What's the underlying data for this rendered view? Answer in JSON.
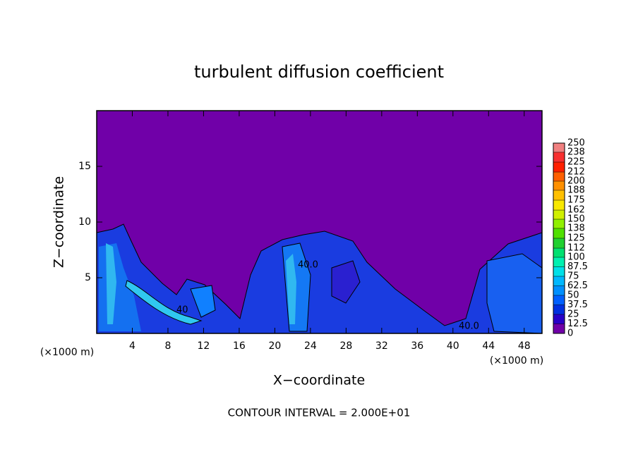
{
  "chart_data": {
    "type": "contour",
    "title": "turbulent diffusion coefficient",
    "xlabel": "X−coordinate",
    "ylabel": "Z−coordinate",
    "x_unit": "(×1000 m)",
    "y_unit": "(×1000 m)",
    "footer": "CONTOUR INTERVAL = 2.000E+01",
    "contour_labels": [
      "40.0",
      "40.0",
      "40"
    ],
    "xlim": [
      0,
      50
    ],
    "xticks": [
      4,
      8,
      12,
      16,
      20,
      24,
      28,
      32,
      36,
      40,
      44,
      48
    ],
    "ylim": [
      0,
      20
    ],
    "yticks": [
      5,
      10,
      15
    ],
    "colorbar": {
      "lim": [
        0,
        250
      ],
      "levels": [
        0,
        12.5,
        25,
        37.5,
        50,
        62.5,
        75,
        87.5,
        100,
        112,
        125,
        138,
        150,
        162,
        175,
        188,
        200,
        212,
        225,
        238,
        250
      ],
      "colors": [
        "#7000a8",
        "#2800c8",
        "#0030e0",
        "#0060ff",
        "#0090ff",
        "#00b8ff",
        "#00e0e8",
        "#00f0b0",
        "#00e070",
        "#20d030",
        "#50e000",
        "#90f000",
        "#d0f000",
        "#f8e800",
        "#ffc000",
        "#ff9000",
        "#ff6000",
        "#ff2000",
        "#f83030",
        "#f08080"
      ]
    }
  }
}
